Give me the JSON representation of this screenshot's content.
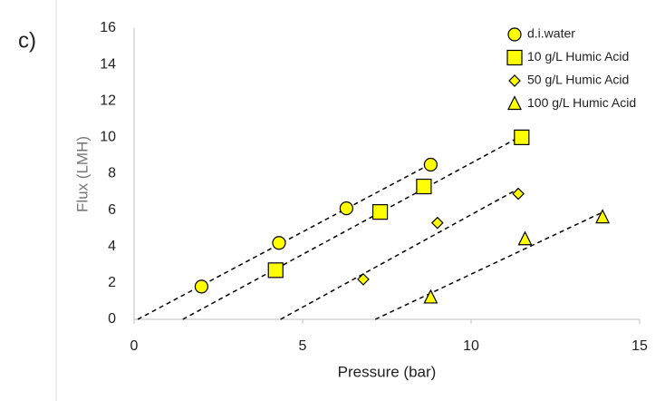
{
  "chart_data": {
    "type": "scatter",
    "panel_label": "c)",
    "x_label": "Pressure (bar)",
    "y_label": "Flux (LMH)",
    "xlim": [
      0,
      15
    ],
    "xticks": [
      0,
      5,
      10,
      15
    ],
    "ylim": [
      0,
      16
    ],
    "yticks": [
      0,
      2,
      4,
      6,
      8,
      10,
      12,
      14,
      16
    ],
    "grid": false,
    "trendline": true,
    "legend": "top-right",
    "series": [
      {
        "name": "d.i.water",
        "color": "#ffff00",
        "marker": "circle",
        "x": [
          2.0,
          4.3,
          6.3,
          8.8
        ],
        "values": [
          1.8,
          4.2,
          6.1,
          8.5
        ]
      },
      {
        "name": "10 g/L Humic Acid",
        "color": "#ffff00",
        "marker": "square",
        "x": [
          4.2,
          7.3,
          8.6,
          11.5
        ],
        "values": [
          2.7,
          5.9,
          7.3,
          10.0
        ]
      },
      {
        "name": "50 g/L Humic Acid",
        "color": "#ffff00",
        "marker": "diamond",
        "x": [
          6.8,
          9.0,
          11.4
        ],
        "values": [
          2.2,
          5.3,
          6.9
        ]
      },
      {
        "name": "100 g/L Humic Acid",
        "color": "#ffff00",
        "marker": "triangle",
        "x": [
          8.8,
          11.6,
          13.9
        ],
        "values": [
          1.2,
          4.4,
          5.6
        ]
      }
    ]
  }
}
